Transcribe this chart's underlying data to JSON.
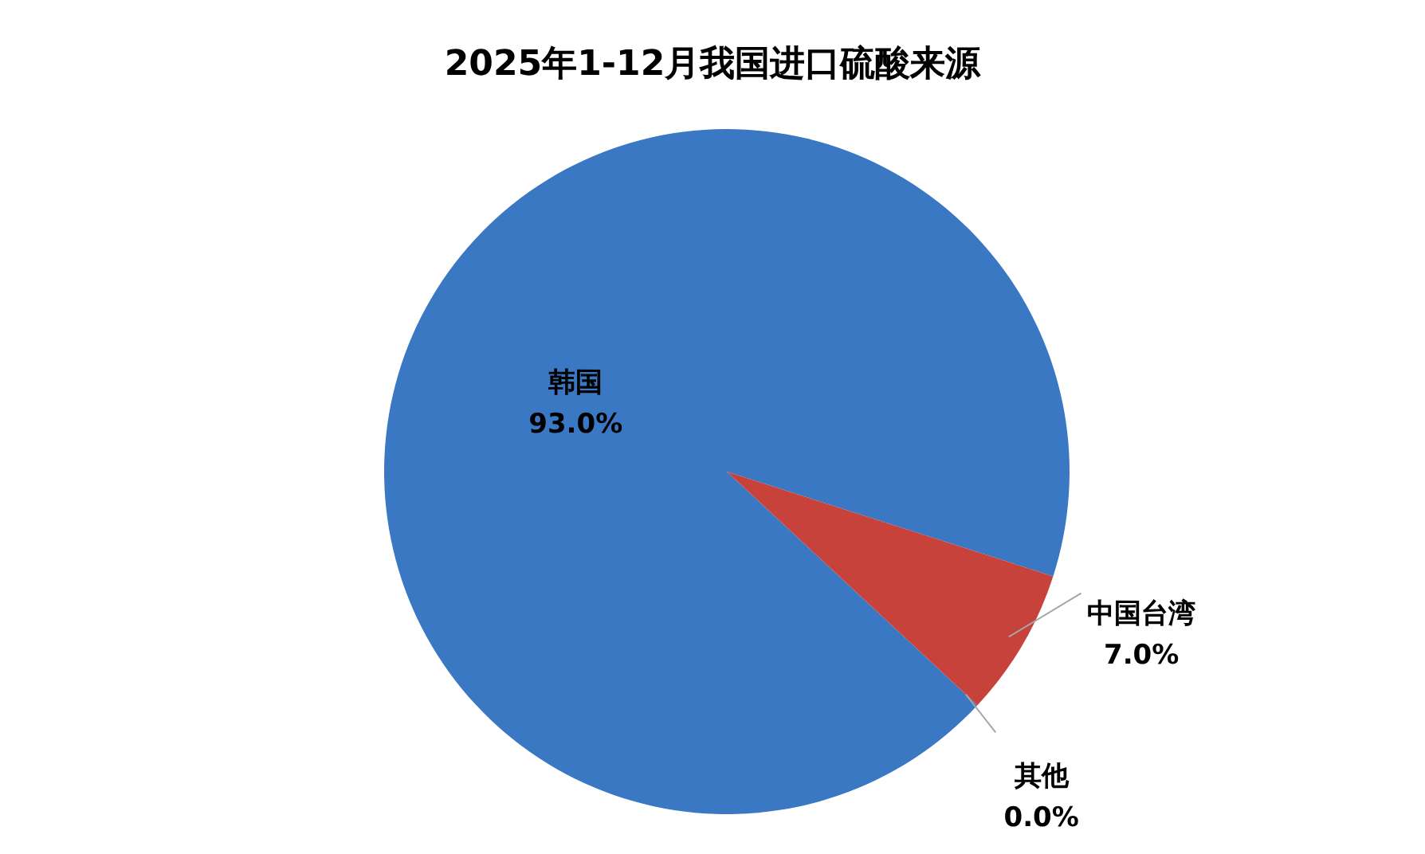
{
  "chart_data": {
    "type": "pie",
    "title": "2025年1-12月我国进口硫酸来源",
    "categories": [
      "韩国",
      "中国台湾",
      "其他"
    ],
    "values": [
      93.0,
      7.0,
      0.0
    ],
    "value_labels": [
      "93.0%",
      "7.0%",
      "0.0%"
    ],
    "colors": [
      "#3a78c4",
      "#c8423c",
      "#9bbb59"
    ]
  }
}
